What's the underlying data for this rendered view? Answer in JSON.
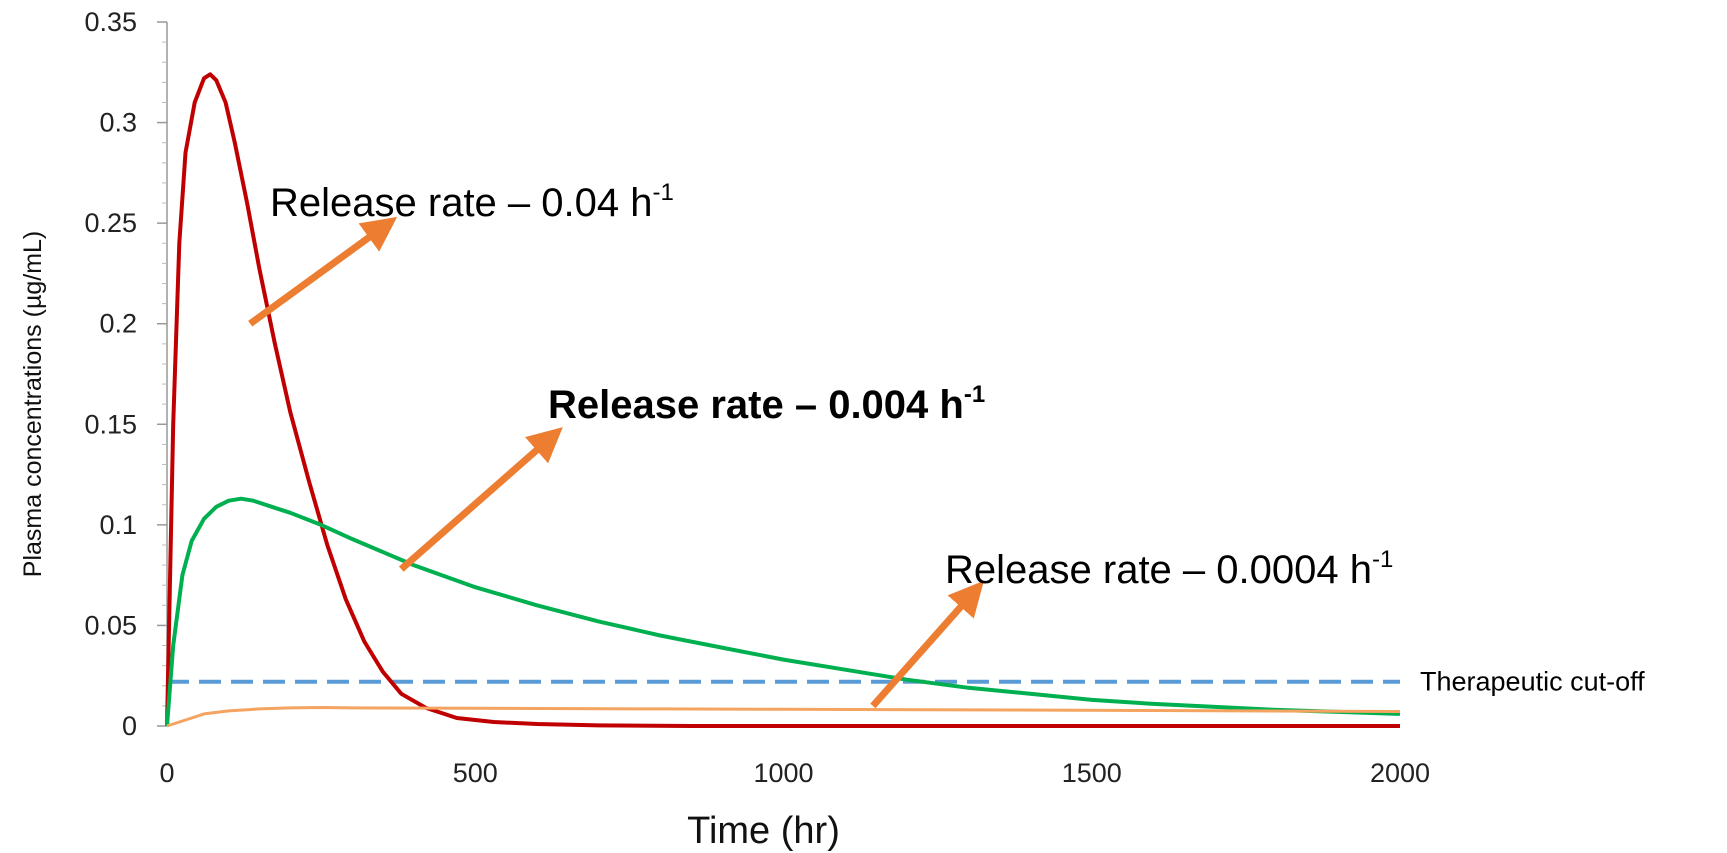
{
  "chart_data": {
    "type": "line",
    "xlabel": "Time (hr)",
    "ylabel": "Plasma concentrations (µg/mL)",
    "xlim": [
      0,
      2000
    ],
    "ylim": [
      0,
      0.35
    ],
    "x_ticks": [
      "0",
      "500",
      "1000",
      "1500",
      "2000"
    ],
    "y_ticks": [
      "0",
      "0.05",
      "0.1",
      "0.15",
      "0.2",
      "0.25",
      "0.3",
      "0.35"
    ],
    "grid": false,
    "series": [
      {
        "color": "#c00000",
        "points": [
          [
            0,
            0
          ],
          [
            10,
            0.15
          ],
          [
            20,
            0.24
          ],
          [
            30,
            0.285
          ],
          [
            45,
            0.31
          ],
          [
            60,
            0.322
          ],
          [
            70,
            0.324
          ],
          [
            80,
            0.321
          ],
          [
            95,
            0.31
          ],
          [
            110,
            0.29
          ],
          [
            130,
            0.26
          ],
          [
            150,
            0.227
          ],
          [
            175,
            0.19
          ],
          [
            200,
            0.156
          ],
          [
            230,
            0.122
          ],
          [
            260,
            0.09
          ],
          [
            290,
            0.063
          ],
          [
            320,
            0.042
          ],
          [
            350,
            0.027
          ],
          [
            380,
            0.016
          ],
          [
            420,
            0.009
          ],
          [
            470,
            0.004
          ],
          [
            530,
            0.002
          ],
          [
            600,
            0.001
          ],
          [
            700,
            0.0003
          ],
          [
            850,
            0
          ],
          [
            2000,
            0
          ]
        ]
      },
      {
        "color": "#00b050",
        "points": [
          [
            0,
            0
          ],
          [
            10,
            0.04
          ],
          [
            25,
            0.075
          ],
          [
            40,
            0.092
          ],
          [
            60,
            0.103
          ],
          [
            80,
            0.109
          ],
          [
            100,
            0.112
          ],
          [
            120,
            0.113
          ],
          [
            140,
            0.112
          ],
          [
            170,
            0.109
          ],
          [
            200,
            0.106
          ],
          [
            250,
            0.1
          ],
          [
            300,
            0.093
          ],
          [
            400,
            0.08
          ],
          [
            500,
            0.069
          ],
          [
            600,
            0.06
          ],
          [
            700,
            0.052
          ],
          [
            800,
            0.045
          ],
          [
            900,
            0.039
          ],
          [
            1000,
            0.033
          ],
          [
            1100,
            0.028
          ],
          [
            1200,
            0.023
          ],
          [
            1300,
            0.019
          ],
          [
            1400,
            0.016
          ],
          [
            1500,
            0.013
          ],
          [
            1600,
            0.011
          ],
          [
            1700,
            0.0095
          ],
          [
            1800,
            0.008
          ],
          [
            1900,
            0.007
          ],
          [
            2000,
            0.006
          ]
        ]
      },
      {
        "color": "#f4a460",
        "points": [
          [
            0,
            0
          ],
          [
            20,
            0.002
          ],
          [
            40,
            0.004
          ],
          [
            60,
            0.006
          ],
          [
            100,
            0.0075
          ],
          [
            150,
            0.0085
          ],
          [
            200,
            0.009
          ],
          [
            250,
            0.0092
          ],
          [
            300,
            0.009
          ],
          [
            500,
            0.0088
          ],
          [
            800,
            0.0085
          ],
          [
            1000,
            0.0083
          ],
          [
            1300,
            0.008
          ],
          [
            1600,
            0.0077
          ],
          [
            2000,
            0.0072
          ]
        ]
      }
    ],
    "reference_lines": [
      {
        "label": "Therapeutic cut-off",
        "y": 0.022,
        "color": "#5b9bd5",
        "style": "dashed"
      }
    ],
    "annotations": [
      {
        "text": "Release rate – 0.04 h",
        "sup": "-1",
        "bold": false,
        "arrow_from": [
          135,
          0.2
        ],
        "arrow_to": [
          355,
          0.249
        ]
      },
      {
        "text": "Release rate – 0.004 h",
        "sup": "-1",
        "bold": true,
        "arrow_from": [
          380,
          0.078
        ],
        "arrow_to": [
          625,
          0.144
        ]
      },
      {
        "text": "Release rate – 0.0004 h",
        "sup": "-1",
        "bold": false,
        "arrow_from": [
          1145,
          0.01
        ],
        "arrow_to": [
          1310,
          0.067
        ]
      }
    ],
    "colors": {
      "arrow": "#ed7d31",
      "axis": "#999999"
    }
  }
}
